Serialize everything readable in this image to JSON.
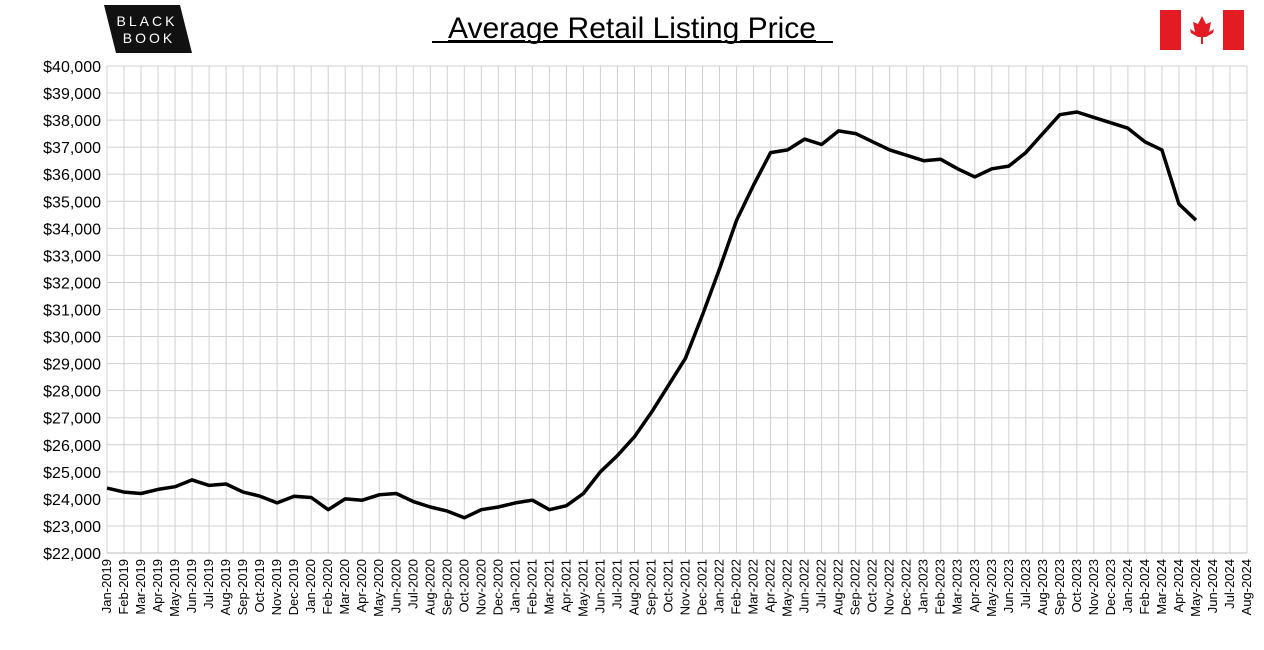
{
  "logo_text": [
    "BLACK",
    "BOOK"
  ],
  "chart_data": {
    "type": "line",
    "title": "Average Retail Listing Price",
    "categories": [
      "Jan-2019",
      "Feb-2019",
      "Mar-2019",
      "Apr-2019",
      "May-2019",
      "Jun-2019",
      "Jul-2019",
      "Aug-2019",
      "Sep-2019",
      "Oct-2019",
      "Nov-2019",
      "Dec-2019",
      "Jan-2020",
      "Feb-2020",
      "Mar-2020",
      "Apr-2020",
      "May-2020",
      "Jun-2020",
      "Jul-2020",
      "Aug-2020",
      "Sep-2020",
      "Oct-2020",
      "Nov-2020",
      "Dec-2020",
      "Jan-2021",
      "Feb-2021",
      "Mar-2021",
      "Apr-2021",
      "May-2021",
      "Jun-2021",
      "Jul-2021",
      "Aug-2021",
      "Sep-2021",
      "Oct-2021",
      "Nov-2021",
      "Dec-2021",
      "Jan-2022",
      "Feb-2022",
      "Mar-2022",
      "Apr-2022",
      "May-2022",
      "Jun-2022",
      "Jul-2022",
      "Aug-2022",
      "Sep-2022",
      "Oct-2022",
      "Nov-2022",
      "Dec-2022",
      "Jan-2023",
      "Feb-2023",
      "Mar-2023",
      "Apr-2023",
      "May-2023",
      "Jun-2023",
      "Jul-2023",
      "Aug-2023",
      "Sep-2023",
      "Oct-2023",
      "Nov-2023",
      "Dec-2023",
      "Jan-2024",
      "Feb-2024",
      "Mar-2024",
      "Apr-2024",
      "May-2024",
      "Jun-2024",
      "Jul-2024",
      "Aug-2024"
    ],
    "values": [
      24400,
      24250,
      24200,
      24350,
      24450,
      24700,
      24500,
      24550,
      24250,
      24100,
      23850,
      24100,
      24050,
      23600,
      24000,
      23950,
      24150,
      24200,
      23900,
      23700,
      23550,
      23300,
      23600,
      23700,
      23850,
      23950,
      23600,
      23750,
      24200,
      25000,
      25600,
      26300,
      27200,
      28200,
      29200,
      30800,
      32500,
      34300,
      35600,
      36800,
      36900,
      37300,
      37100,
      37600,
      37500,
      37200,
      36900,
      36700,
      36500,
      36550,
      36200,
      35900,
      36200,
      36300,
      36800,
      37500,
      38200,
      38300,
      38100,
      37900,
      37700,
      37200,
      36900,
      34900,
      34300,
      null,
      null,
      null
    ],
    "color": "#000000",
    "ylim": [
      22000,
      40000
    ],
    "yticks": [
      {
        "value": 22000,
        "label": "$22,000"
      },
      {
        "value": 23000,
        "label": "$23,000"
      },
      {
        "value": 24000,
        "label": "$24,000"
      },
      {
        "value": 25000,
        "label": "$25,000"
      },
      {
        "value": 26000,
        "label": "$26,000"
      },
      {
        "value": 27000,
        "label": "$27,000"
      },
      {
        "value": 28000,
        "label": "$28,000"
      },
      {
        "value": 29000,
        "label": "$29,000"
      },
      {
        "value": 30000,
        "label": "$30,000"
      },
      {
        "value": 31000,
        "label": "$31,000"
      },
      {
        "value": 32000,
        "label": "$32,000"
      },
      {
        "value": 33000,
        "label": "$33,000"
      },
      {
        "value": 34000,
        "label": "$34,000"
      },
      {
        "value": 35000,
        "label": "$35,000"
      },
      {
        "value": 36000,
        "label": "$36,000"
      },
      {
        "value": 37000,
        "label": "$37,000"
      },
      {
        "value": 38000,
        "label": "$38,000"
      },
      {
        "value": 39000,
        "label": "$39,000"
      },
      {
        "value": 40000,
        "label": "$40,000"
      }
    ],
    "grid": true
  }
}
